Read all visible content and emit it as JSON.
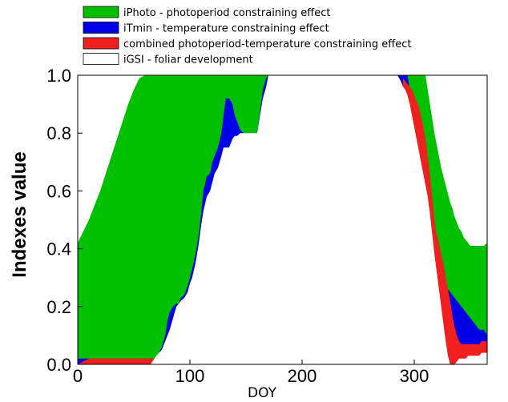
{
  "chart_data": {
    "type": "area",
    "title": "",
    "xlabel": "DOY",
    "ylabel": "Indexes value",
    "xlim": [
      0,
      365
    ],
    "ylim": [
      0,
      1
    ],
    "xticks": [
      0,
      100,
      200,
      300
    ],
    "yticks": [
      0.0,
      0.2,
      0.4,
      0.6,
      0.8,
      1.0
    ],
    "xtick_labels": [
      "0",
      "100",
      "200",
      "300"
    ],
    "ytick_labels": [
      "0.0",
      "0.2",
      "0.4",
      "0.6",
      "0.8",
      "1.0"
    ],
    "grid": false,
    "legend_position": "top-left",
    "x": [
      0,
      5,
      10,
      15,
      20,
      25,
      30,
      35,
      40,
      45,
      50,
      55,
      60,
      65,
      70,
      75,
      78,
      80,
      82,
      85,
      88,
      90,
      92,
      95,
      98,
      100,
      102,
      105,
      108,
      110,
      112,
      115,
      118,
      120,
      122,
      125,
      128,
      130,
      132,
      135,
      138,
      140,
      142,
      145,
      148,
      150,
      152,
      155,
      158,
      160,
      162,
      165,
      168,
      170,
      175,
      180,
      185,
      190,
      195,
      200,
      205,
      210,
      215,
      220,
      225,
      230,
      235,
      240,
      245,
      250,
      255,
      260,
      265,
      270,
      275,
      280,
      285,
      288,
      290,
      292,
      294,
      296,
      298,
      300,
      302,
      304,
      306,
      308,
      310,
      312,
      314,
      316,
      318,
      320,
      322,
      324,
      326,
      328,
      330,
      332,
      334,
      336,
      338,
      340,
      342,
      344,
      346,
      348,
      350,
      352,
      354,
      356,
      358,
      360,
      362,
      365
    ],
    "series": [
      {
        "name": "iPhoto - photoperiod constraining effect",
        "color": "#00c000",
        "values": [
          0.42,
          0.46,
          0.5,
          0.55,
          0.6,
          0.66,
          0.72,
          0.78,
          0.84,
          0.9,
          0.95,
          0.99,
          1,
          1,
          1,
          1,
          1,
          1,
          1,
          1,
          1,
          1,
          1,
          1,
          1,
          1,
          1,
          1,
          1,
          1,
          1,
          1,
          1,
          1,
          1,
          1,
          1,
          1,
          1,
          1,
          1,
          1,
          1,
          1,
          1,
          1,
          1,
          1,
          1,
          1,
          1,
          1,
          1,
          1,
          1,
          1,
          1,
          1,
          1,
          1,
          1,
          1,
          1,
          1,
          1,
          1,
          1,
          1,
          1,
          1,
          1,
          1,
          1,
          1,
          1,
          1,
          1,
          1,
          1,
          1,
          1,
          1,
          1,
          1,
          1,
          1,
          1,
          1,
          1,
          0.95,
          0.9,
          0.85,
          0.8,
          0.76,
          0.72,
          0.68,
          0.65,
          0.62,
          0.59,
          0.56,
          0.54,
          0.51,
          0.49,
          0.47,
          0.46,
          0.44,
          0.43,
          0.42,
          0.41,
          0.41,
          0.41,
          0.41,
          0.41,
          0.41,
          0.41,
          0.42
        ]
      },
      {
        "name": "iTmin - temperature constraining effect",
        "color": "#0000e6",
        "values": [
          0.02,
          0.02,
          0.02,
          0.02,
          0.02,
          0.02,
          0.02,
          0.02,
          0.02,
          0.02,
          0.02,
          0.02,
          0.02,
          0.02,
          0.02,
          0.06,
          0.1,
          0.15,
          0.18,
          0.2,
          0.21,
          0.21,
          0.23,
          0.24,
          0.27,
          0.3,
          0.33,
          0.38,
          0.45,
          0.52,
          0.6,
          0.65,
          0.66,
          0.7,
          0.72,
          0.75,
          0.8,
          0.86,
          0.92,
          0.92,
          0.9,
          0.86,
          0.84,
          0.81,
          0.8,
          0.8,
          0.8,
          0.8,
          0.8,
          0.8,
          0.86,
          0.95,
          0.99,
          1,
          1,
          1,
          1,
          1,
          1,
          1,
          1,
          1,
          1,
          1,
          1,
          1,
          1,
          1,
          1,
          1,
          1,
          1,
          1,
          1,
          1,
          1,
          1,
          1,
          1,
          1,
          1,
          0.95,
          0.9,
          0.85,
          0.8,
          0.75,
          0.7,
          0.65,
          0.6,
          0.55,
          0.5,
          0.45,
          0.42,
          0.38,
          0.35,
          0.32,
          0.3,
          0.28,
          0.26,
          0.25,
          0.24,
          0.23,
          0.22,
          0.21,
          0.2,
          0.19,
          0.18,
          0.17,
          0.16,
          0.15,
          0.14,
          0.13,
          0.12,
          0.12,
          0.12,
          0.1
        ]
      },
      {
        "name": "combined photoperiod-temperature constraining effect",
        "color": "#f02020",
        "values": [
          0.0,
          0.01,
          0.02,
          0.02,
          0.02,
          0.02,
          0.02,
          0.02,
          0.02,
          0.02,
          0.02,
          0.02,
          0.02,
          0.02,
          0.02,
          0.02,
          0.02,
          0.02,
          0.02,
          0.02,
          0.02,
          0.02,
          0.02,
          0.02,
          0.02,
          0.02,
          0.02,
          0.02,
          0.02,
          0.02,
          0.02,
          0.02,
          0.02,
          0.02,
          0.02,
          0.02,
          0.02,
          0.02,
          0.02,
          0.02,
          0.02,
          0.02,
          0.02,
          0.02,
          0.02,
          0.02,
          0.02,
          0.02,
          0.02,
          0.02,
          0.02,
          0.02,
          0.02,
          0.02,
          0.02,
          0.02,
          0.02,
          0.02,
          0.02,
          0.02,
          0.02,
          0.02,
          0.02,
          0.02,
          0.02,
          0.02,
          0.02,
          0.02,
          0.02,
          0.02,
          0.02,
          0.02,
          0.02,
          0.02,
          0.02,
          0.02,
          0.02,
          0.02,
          0.99,
          0.98,
          0.97,
          0.96,
          0.95,
          0.93,
          0.91,
          0.89,
          0.86,
          0.82,
          0.78,
          0.72,
          0.65,
          0.58,
          0.5,
          0.45,
          0.42,
          0.38,
          0.35,
          0.3,
          0.26,
          0.22,
          0.17,
          0.13,
          0.1,
          0.08,
          0.07,
          0.07,
          0.07,
          0.07,
          0.07,
          0.07,
          0.07,
          0.07,
          0.07,
          0.08,
          0.08,
          0.08
        ]
      },
      {
        "name": "iGSI - foliar development",
        "color": "#ffffff",
        "values": [
          0.0,
          0.0,
          0.0,
          0.0,
          0.0,
          0.0,
          0.0,
          0.0,
          0.0,
          0.0,
          0.0,
          0.0,
          0.0,
          0.0,
          0.03,
          0.05,
          0.08,
          0.1,
          0.12,
          0.16,
          0.2,
          0.21,
          0.22,
          0.23,
          0.25,
          0.28,
          0.3,
          0.35,
          0.42,
          0.48,
          0.53,
          0.58,
          0.6,
          0.63,
          0.66,
          0.68,
          0.72,
          0.75,
          0.75,
          0.75,
          0.78,
          0.79,
          0.79,
          0.8,
          0.8,
          0.8,
          0.8,
          0.8,
          0.8,
          0.8,
          0.85,
          0.92,
          0.96,
          1.0,
          1.0,
          1.0,
          1.0,
          1.0,
          1.0,
          1.0,
          1.0,
          1.0,
          1.0,
          1.0,
          1.0,
          1.0,
          1.0,
          1.0,
          1.0,
          1.0,
          1.0,
          1.0,
          1.0,
          1.0,
          1.0,
          1.0,
          1.0,
          0.98,
          0.96,
          0.95,
          0.93,
          0.9,
          0.86,
          0.82,
          0.78,
          0.74,
          0.7,
          0.66,
          0.62,
          0.58,
          0.52,
          0.45,
          0.38,
          0.32,
          0.26,
          0.2,
          0.14,
          0.08,
          0.03,
          0.0,
          0.0,
          0.0,
          0.01,
          0.02,
          0.02,
          0.02,
          0.02,
          0.03,
          0.03,
          0.03,
          0.03,
          0.03,
          0.03,
          0.04,
          0.04,
          0.04
        ]
      }
    ]
  }
}
